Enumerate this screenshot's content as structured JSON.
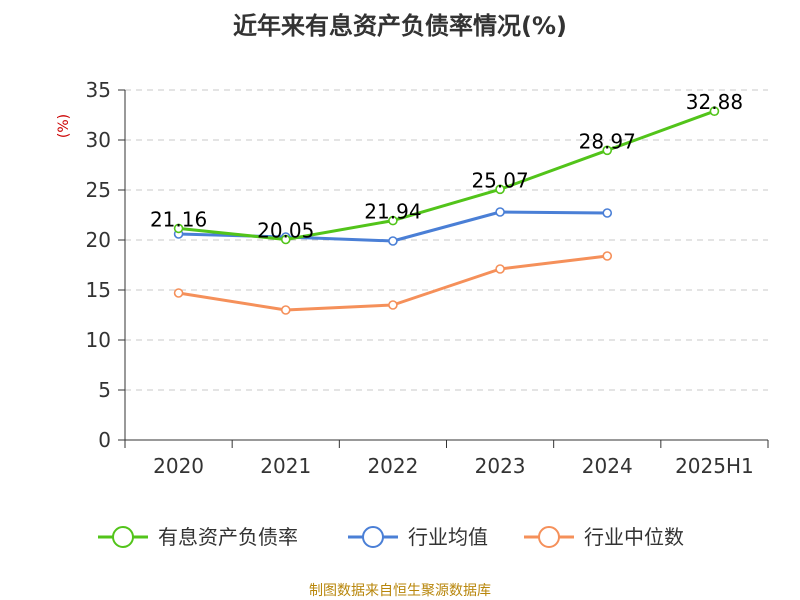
{
  "chart_data": {
    "type": "line",
    "title": "近年来有息资产负债率情况(%)",
    "ylabel": "(%)",
    "xlabel": "",
    "ylim": [
      0,
      35
    ],
    "yticks": [
      0,
      5,
      10,
      15,
      20,
      25,
      30,
      35
    ],
    "categories": [
      "2020",
      "2021",
      "2022",
      "2023",
      "2024",
      "2025H1"
    ],
    "grid": true,
    "legend_position": "bottom",
    "series": [
      {
        "name": "有息资产负债率",
        "color": "#52c41a",
        "values": [
          21.16,
          20.05,
          21.94,
          25.07,
          28.97,
          32.88
        ],
        "labels": [
          "21.16",
          "20.05",
          "21.94",
          "25.07",
          "28.97",
          "32.88"
        ]
      },
      {
        "name": "行业均值",
        "color": "#4a7fd6",
        "values": [
          20.6,
          20.3,
          19.9,
          22.8,
          22.7,
          null
        ]
      },
      {
        "name": "行业中位数",
        "color": "#f5905a",
        "values": [
          14.7,
          13.0,
          13.5,
          17.1,
          18.4,
          null
        ]
      }
    ]
  },
  "source": "制图数据来自恒生聚源数据库"
}
